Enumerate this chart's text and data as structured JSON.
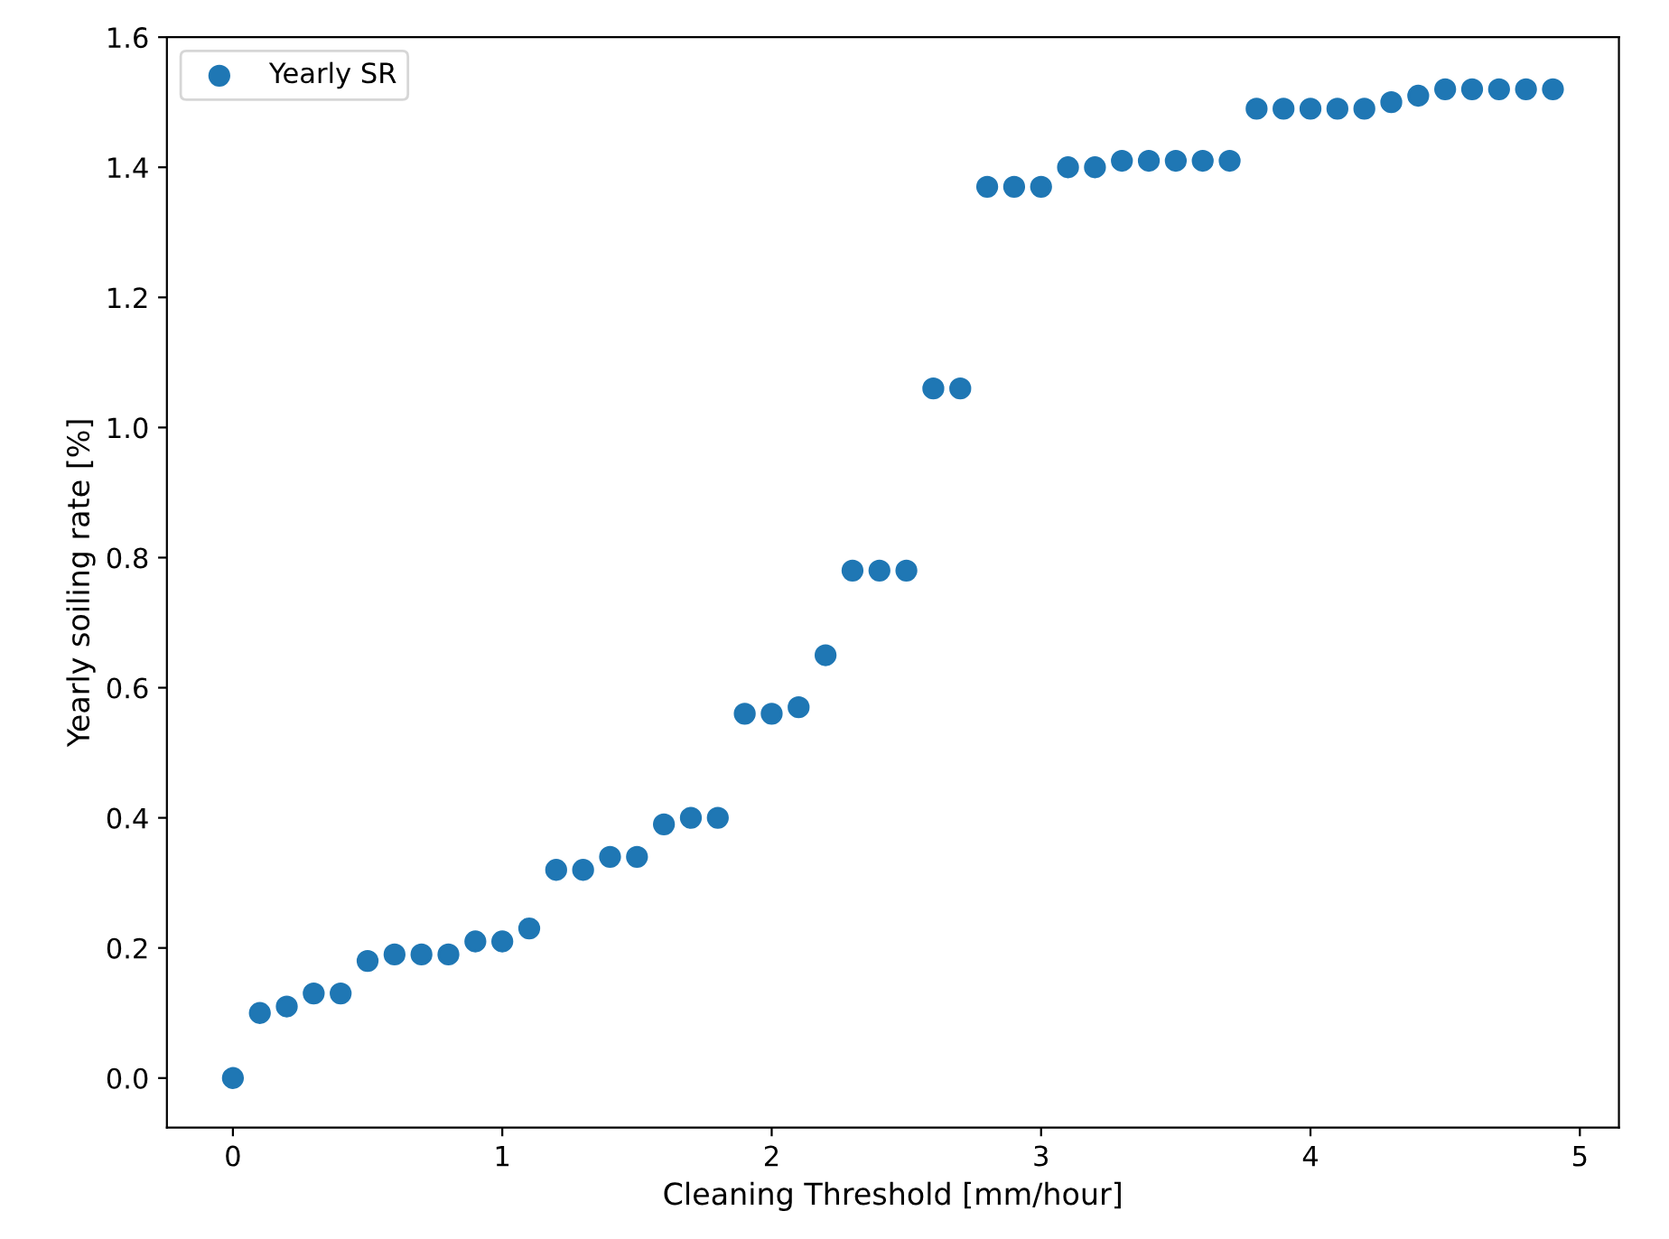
{
  "chart_data": {
    "type": "scatter",
    "xlabel": "Cleaning Threshold [mm/hour]",
    "ylabel": "Yearly soiling rate [%]",
    "x": [
      0,
      0.1,
      0.2,
      0.3,
      0.4,
      0.5,
      0.6,
      0.7,
      0.8,
      0.9,
      1.0,
      1.1,
      1.2,
      1.3,
      1.4,
      1.5,
      1.6,
      1.7,
      1.8,
      1.9,
      2.0,
      2.1,
      2.2,
      2.3,
      2.4,
      2.5,
      2.6,
      2.7,
      2.8,
      2.9,
      3.0,
      3.1,
      3.2,
      3.3,
      3.4,
      3.5,
      3.6,
      3.7,
      3.8,
      3.9,
      4.0,
      4.1,
      4.2,
      4.3,
      4.4,
      4.5,
      4.6,
      4.7,
      4.8,
      4.9
    ],
    "series": [
      {
        "name": "Yearly SR",
        "color": "#1f77b4",
        "values": [
          0,
          0.1,
          0.11,
          0.13,
          0.13,
          0.18,
          0.19,
          0.19,
          0.19,
          0.21,
          0.21,
          0.23,
          0.32,
          0.32,
          0.34,
          0.34,
          0.39,
          0.4,
          0.4,
          0.56,
          0.56,
          0.57,
          0.65,
          0.78,
          0.78,
          0.78,
          1.06,
          1.06,
          1.37,
          1.37,
          1.37,
          1.4,
          1.4,
          1.41,
          1.41,
          1.41,
          1.41,
          1.41,
          1.49,
          1.49,
          1.49,
          1.49,
          1.49,
          1.5,
          1.51,
          1.52,
          1.52,
          1.52,
          1.52,
          1.52
        ]
      }
    ],
    "xlim": [
      -0.245,
      5.145
    ],
    "xticks": [
      0,
      1,
      2,
      3,
      4,
      5
    ],
    "ylim": [
      -0.076,
      1.6
    ],
    "yticks": [
      {
        "value": 0,
        "label": "0.0"
      },
      0.2,
      0.4,
      0.6,
      0.8,
      {
        "value": 1,
        "label": "1.0"
      },
      1.2,
      1.4,
      1.6
    ],
    "marker": "circle",
    "legend": "top left"
  }
}
